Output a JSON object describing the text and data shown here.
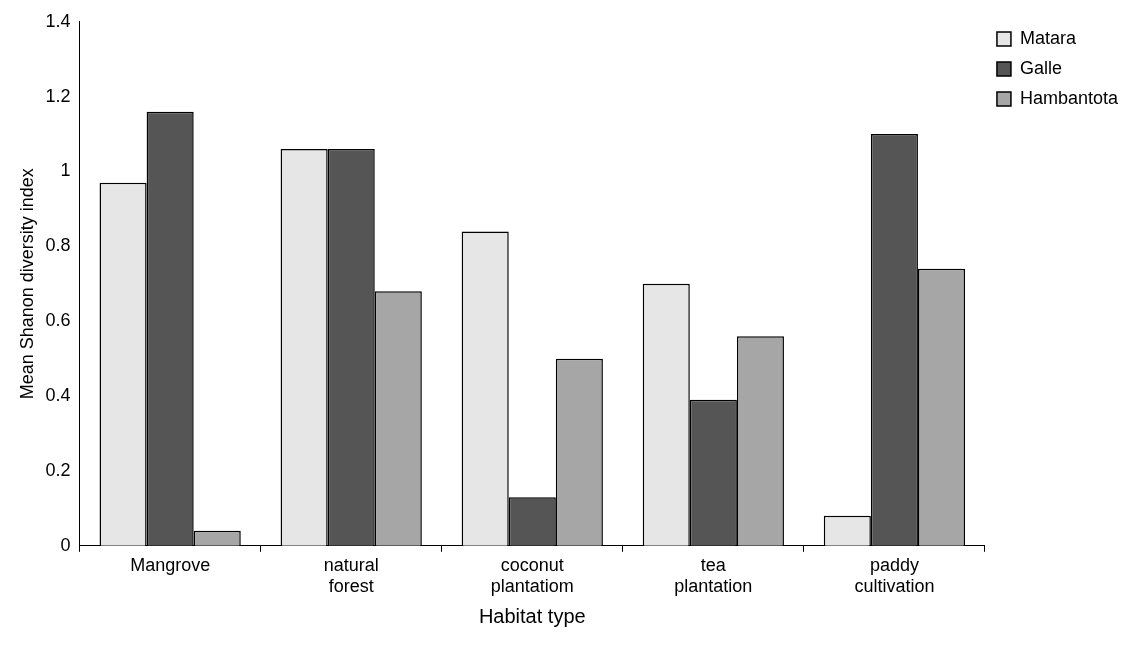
{
  "chart_data": {
    "type": "bar",
    "xlabel": "Habitat type",
    "ylabel": "Mean Shanon diversity index",
    "categories": [
      "Mangrove",
      "natural forest",
      "coconut plantatiom",
      "tea plantation",
      "paddy cultivation"
    ],
    "series": [
      {
        "name": "Matara",
        "color": "#e6e6e6",
        "values": [
          0.97,
          1.06,
          0.84,
          0.7,
          0.08
        ]
      },
      {
        "name": "Galle",
        "color": "#555555",
        "values": [
          1.16,
          1.06,
          0.13,
          0.39,
          1.1
        ]
      },
      {
        "name": "Hambantota",
        "color": "#a6a6a6",
        "values": [
          0.04,
          0.68,
          0.5,
          0.56,
          0.74
        ]
      }
    ],
    "ylim": [
      0,
      1.4
    ],
    "yticks": [
      0,
      0.2,
      0.4,
      0.6,
      0.8,
      1,
      1.2,
      1.4
    ],
    "grid": false,
    "legend": "top right"
  }
}
